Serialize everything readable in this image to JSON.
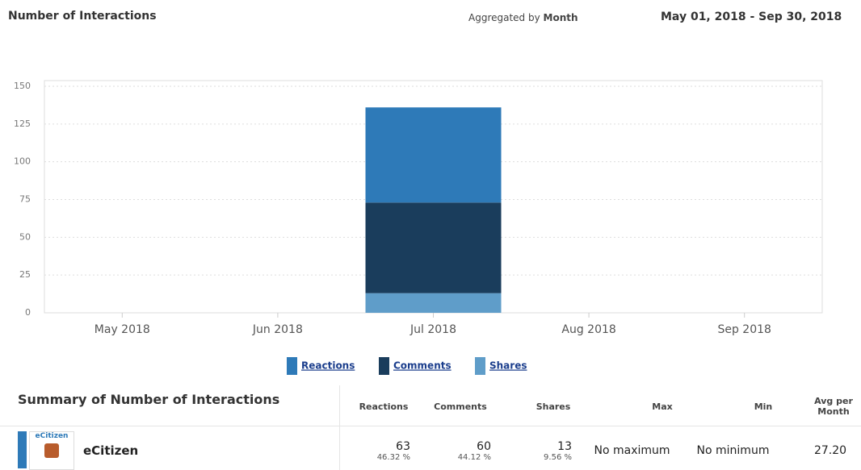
{
  "header": {
    "title": "Number of Interactions",
    "aggregated_prefix": "Aggregated by",
    "aggregated_value": "Month",
    "date_range": "May 01, 2018 - Sep 30, 2018"
  },
  "chart_data": {
    "type": "stacked_bar",
    "categories": [
      "May 2018",
      "Jun 2018",
      "Jul 2018",
      "Aug 2018",
      "Sep 2018"
    ],
    "series": [
      {
        "name": "Reactions",
        "color": "#2e7ab8",
        "values": [
          0,
          0,
          63,
          0,
          0
        ]
      },
      {
        "name": "Comments",
        "color": "#1a3d5c",
        "values": [
          0,
          0,
          60,
          0,
          0
        ]
      },
      {
        "name": "Shares",
        "color": "#5f9dc9",
        "values": [
          0,
          0,
          13,
          0,
          0
        ]
      }
    ],
    "ylim": [
      0,
      150
    ],
    "yticks": [
      0,
      25,
      50,
      75,
      100,
      125,
      150
    ],
    "grid": true,
    "legend": "bottom"
  },
  "summary": {
    "title": "Summary of Number of Interactions",
    "columns": [
      "Reactions",
      "Comments",
      "Shares",
      "Max",
      "Min",
      "Avg per Month"
    ],
    "rows": [
      {
        "logo_text": "eCitizen",
        "name": "eCitizen",
        "reactions": {
          "value": 63,
          "percent": "46.32 %"
        },
        "comments": {
          "value": 60,
          "percent": "44.12 %"
        },
        "shares": {
          "value": 13,
          "percent": "9.56 %"
        },
        "max": "No maximum",
        "min": "No minimum",
        "avg": "27.20"
      }
    ]
  }
}
